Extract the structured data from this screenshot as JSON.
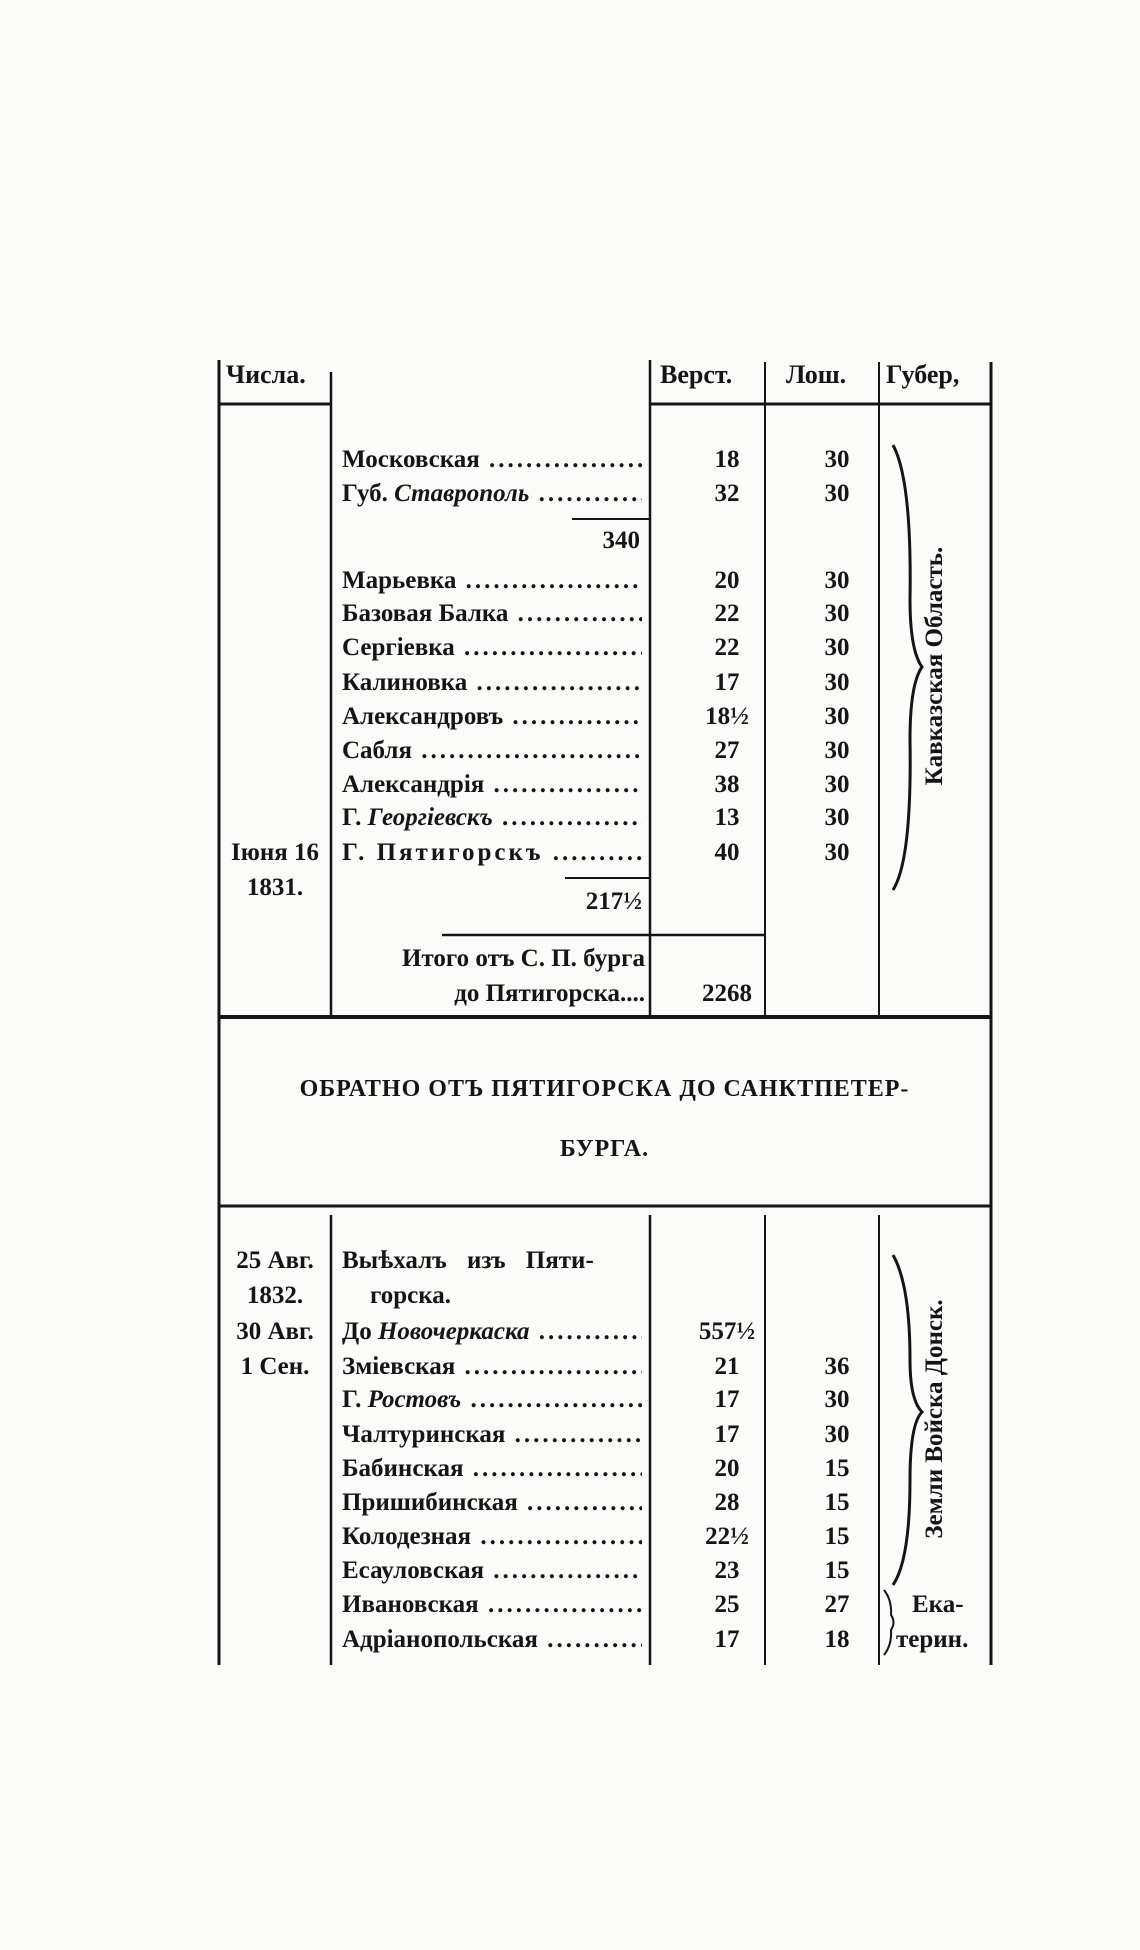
{
  "header": {
    "dates": "Числа.",
    "versts": "Верст.",
    "horses": "Лош.",
    "province": "Губер,"
  },
  "section1": {
    "rows": [
      {
        "name": "Московская",
        "italic_part": "",
        "versts": "18",
        "horses": "30"
      },
      {
        "name": "Губ. ",
        "italic_part": "Ставрополь",
        "versts": "32",
        "horses": "30"
      },
      {
        "name": "Марьевка",
        "italic_part": "",
        "versts": "20",
        "horses": "30"
      },
      {
        "name": "Базовая Балка",
        "italic_part": "",
        "versts": "22",
        "horses": "30"
      },
      {
        "name": "Сергіевка",
        "italic_part": "",
        "versts": "22",
        "horses": "30"
      },
      {
        "name": "Калиновка",
        "italic_part": "",
        "versts": "17",
        "horses": "30"
      },
      {
        "name": "Александровъ",
        "italic_part": "",
        "versts": "18½",
        "horses": "30"
      },
      {
        "name": "Сабля",
        "italic_part": "",
        "versts": "27",
        "horses": "30"
      },
      {
        "name": "Александрія",
        "italic_part": "",
        "versts": "38",
        "horses": "30"
      },
      {
        "name": "Г. ",
        "italic_part": "Георгіевскъ",
        "versts": "13",
        "horses": "30"
      },
      {
        "name": "Г. Пятигорскъ",
        "italic_part": "",
        "versts": "40",
        "horses": "30"
      }
    ],
    "subtotal_1": "340",
    "subtotal_2": "217½",
    "date_line1": "Іюня 16",
    "date_line2": "1831.",
    "total_line1": "Итого отъ С. П. бурга",
    "total_line2": "до Пятигорска....",
    "total_versts": "2268",
    "province_label": "Кавказская Область."
  },
  "return_heading": {
    "line1": "ОБРАТНО ОТЪ ПЯТИГОРСКА ДО САНКТПЕТЕР-",
    "line2": "БУРГА."
  },
  "section2": {
    "dates": [
      "25 Авг.",
      "1832.",
      "30 Авг.",
      "1 Сен."
    ],
    "departure_line1": "Выѣхалъ изъ Пяти-",
    "departure_line2": "горска.",
    "rows": [
      {
        "name": "До ",
        "italic_part": "Новочеркаска",
        "versts": "557½",
        "horses": ""
      },
      {
        "name": "Зміевская",
        "italic_part": "",
        "versts": "21",
        "horses": "36"
      },
      {
        "name": "Г. ",
        "italic_part": "Ростовъ",
        "versts": "17",
        "horses": "30"
      },
      {
        "name": "Чалтуринская",
        "italic_part": "",
        "versts": "17",
        "horses": "30"
      },
      {
        "name": "Бабинская",
        "italic_part": "",
        "versts": "20",
        "horses": "15"
      },
      {
        "name": "Пришибинская",
        "italic_part": "",
        "versts": "28",
        "horses": "15"
      },
      {
        "name": "Колодезная",
        "italic_part": "",
        "versts": "22½",
        "horses": "15"
      },
      {
        "name": "Есауловская",
        "italic_part": "",
        "versts": "23",
        "horses": "15"
      },
      {
        "name": "Ивановская",
        "italic_part": "",
        "versts": "25",
        "horses": "27"
      },
      {
        "name": "Адріанопольская",
        "italic_part": "",
        "versts": "17",
        "horses": "18"
      }
    ],
    "province_label": "Земли Войска Донск.",
    "province2_line1": "Ека-",
    "province2_line2": "терин."
  },
  "ink_color": "#151515",
  "paper_color": "#fbfbf9"
}
